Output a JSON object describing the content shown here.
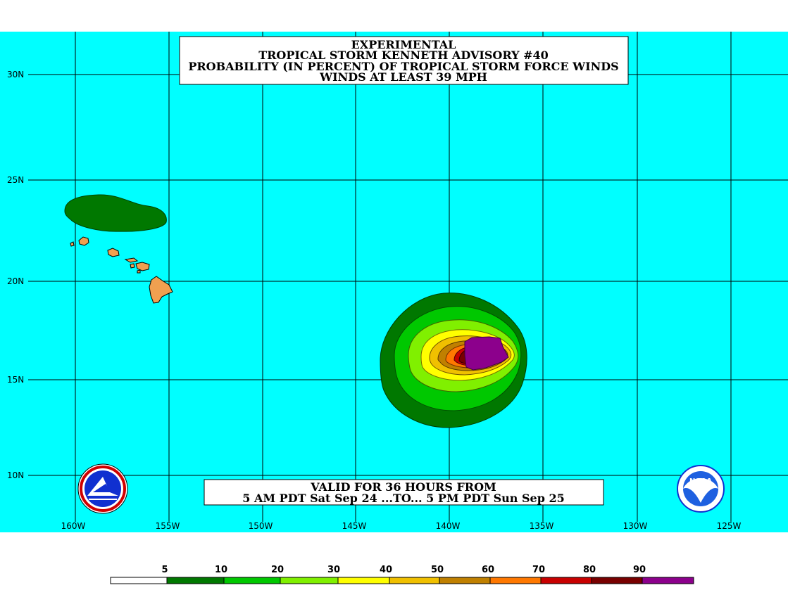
{
  "map": {
    "title_lines": [
      "EXPERIMENTAL",
      "TROPICAL STORM KENNETH ADVISORY #40",
      "PROBABILITY (IN PERCENT) OF TROPICAL STORM FORCE WINDS",
      "WINDS AT LEAST 39 MPH"
    ],
    "valid_lines": [
      "VALID FOR 36 HOURS FROM",
      "5 AM PDT Sat Sep 24 ...TO... 5 PM PDT Sun Sep 25"
    ],
    "lon_labels": [
      "160W",
      "155W",
      "150W",
      "145W",
      "140W",
      "135W",
      "130W",
      "125W"
    ],
    "lat_labels": [
      "30N",
      "25N",
      "20N",
      "15N",
      "10N"
    ],
    "colors": {
      "ocean": "#00ffff",
      "land_hawaii": "#f0a050",
      "grid": "#000000",
      "p5": "#ffffff",
      "p10": "#007800",
      "p20": "#00c800",
      "p30": "#80f000",
      "p40": "#ffff00",
      "p50": "#f0c000",
      "p60": "#c08000",
      "p70": "#ff7800",
      "p80": "#c80000",
      "p90": "#780000",
      "p100": "#8c008c"
    }
  },
  "legend": {
    "labels": [
      "5",
      "10",
      "20",
      "30",
      "40",
      "50",
      "60",
      "70",
      "80",
      "90"
    ],
    "colors": [
      "#ffffff",
      "#007800",
      "#00c800",
      "#80f000",
      "#ffff00",
      "#f0c000",
      "#c08000",
      "#ff7800",
      "#c80000",
      "#780000",
      "#8c008c"
    ]
  },
  "logos": {
    "nws": "nws-logo",
    "noaa": "NOAA"
  }
}
